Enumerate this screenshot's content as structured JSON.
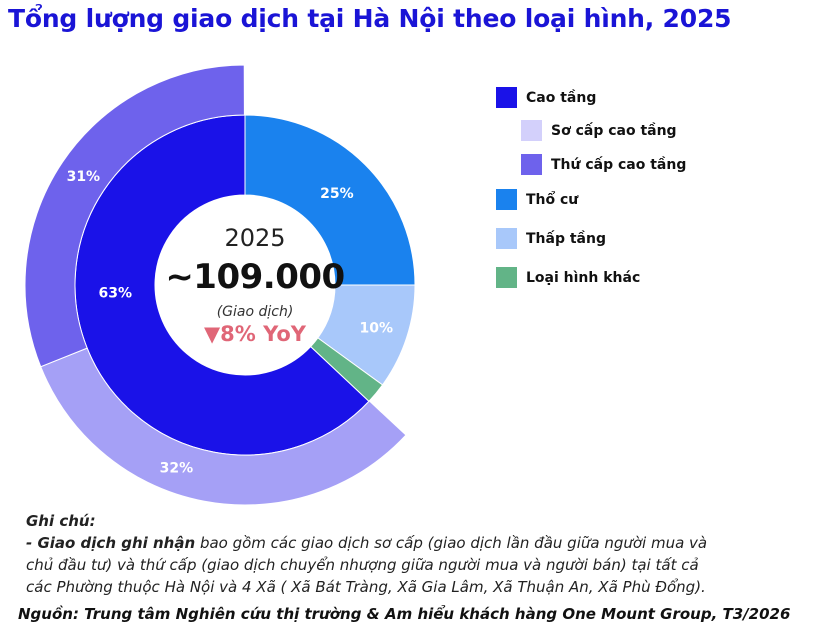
{
  "chart_data": {
    "type": "pie",
    "title": "Tổng lượng giao dịch tại Hà Nội theo loại hình, 2025",
    "center": {
      "year": "2025",
      "total": "~109.000",
      "unit": "(Giao dịch)",
      "yoy": "▼8% YoY"
    },
    "inner_ring": [
      {
        "name": "Cao tầng",
        "value": 63,
        "label": "63%",
        "color": "#1a12e8"
      },
      {
        "name": "Thổ cư",
        "value": 25,
        "label": "25%",
        "color": "#1a82ee"
      },
      {
        "name": "Thấp tầng",
        "value": 10,
        "label": "10%",
        "color": "#a8c8fa"
      },
      {
        "name": "Loại hình khác",
        "value": 2,
        "label": "",
        "color": "#62b487"
      }
    ],
    "outer_ring": [
      {
        "name": "Sơ cấp cao tầng",
        "value": 32,
        "label": "32%",
        "color": "#a5a0f6"
      },
      {
        "name": "Thứ cấp cao tầng",
        "value": 31,
        "label": "31%",
        "color": "#6e62ec"
      }
    ],
    "legend": [
      {
        "label": "Cao tầng",
        "color": "#1a12e8"
      },
      {
        "label": "Sơ cấp cao tầng",
        "color": "#d3d0fb"
      },
      {
        "label": "Thứ cấp cao tầng",
        "color": "#6e62ec"
      },
      {
        "label": "Thổ cư",
        "color": "#1a82ee"
      },
      {
        "label": "Thấp tầng",
        "color": "#a8c8fa"
      },
      {
        "label": "Loại hình khác",
        "color": "#62b487"
      }
    ]
  },
  "note": {
    "title": "Ghi chú:",
    "lead": "- Giao dịch ghi nhận",
    "line1": " bao gồm các giao dịch sơ cấp (giao dịch lần đầu giữa người mua và",
    "line2": "chủ đầu tư) và thứ cấp (giao dịch chuyển nhượng giữa người mua và người bán) tại tất cả",
    "line3": "các Phường thuộc Hà Nội và 4 Xã ( Xã Bát Tràng, Xã Gia Lâm, Xã Thuận An, Xã Phù Đổng)."
  },
  "source": "Nguồn: Trung tâm Nghiên cứu thị trường & Am hiểu khách hàng One Mount Group, T3/2026"
}
